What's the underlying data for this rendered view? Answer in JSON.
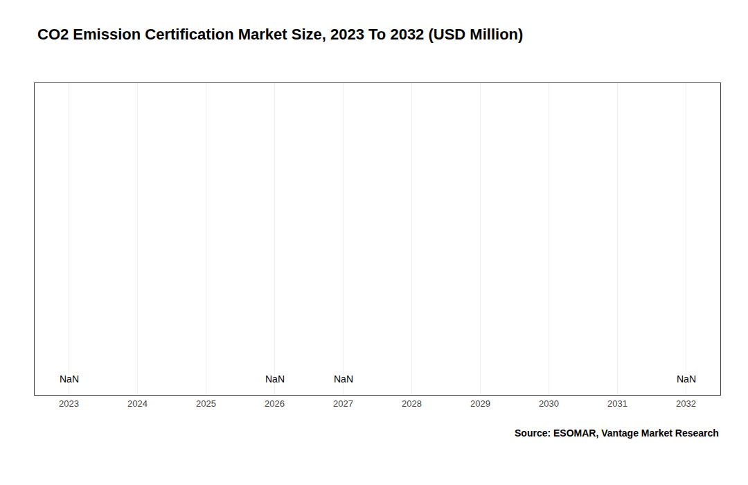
{
  "chart_data": {
    "type": "bar",
    "title": "CO2 Emission Certification Market Size, 2023 To 2032 (USD Million)",
    "x": [
      2023,
      2024,
      2025,
      2026,
      2027,
      2028,
      2029,
      2030,
      2031,
      2032
    ],
    "values": [
      null,
      null,
      null,
      null,
      null,
      null,
      null,
      null,
      null,
      null
    ],
    "xlim": [
      2022.5,
      2032.5
    ],
    "xticks": [
      2023,
      2024,
      2025,
      2026,
      2027,
      2028,
      2029,
      2030,
      2031,
      2032
    ],
    "ylim": [
      0,
      1
    ],
    "tick_labels": "x",
    "grid": true,
    "annotations": [
      {
        "x": 2023,
        "text": "NaN"
      },
      {
        "x": 2026,
        "text": "NaN"
      },
      {
        "x": 2027,
        "text": "NaN"
      },
      {
        "x": 2032,
        "text": "NaN"
      }
    ],
    "source": "Source: ESOMAR, Vantage Market Research"
  }
}
